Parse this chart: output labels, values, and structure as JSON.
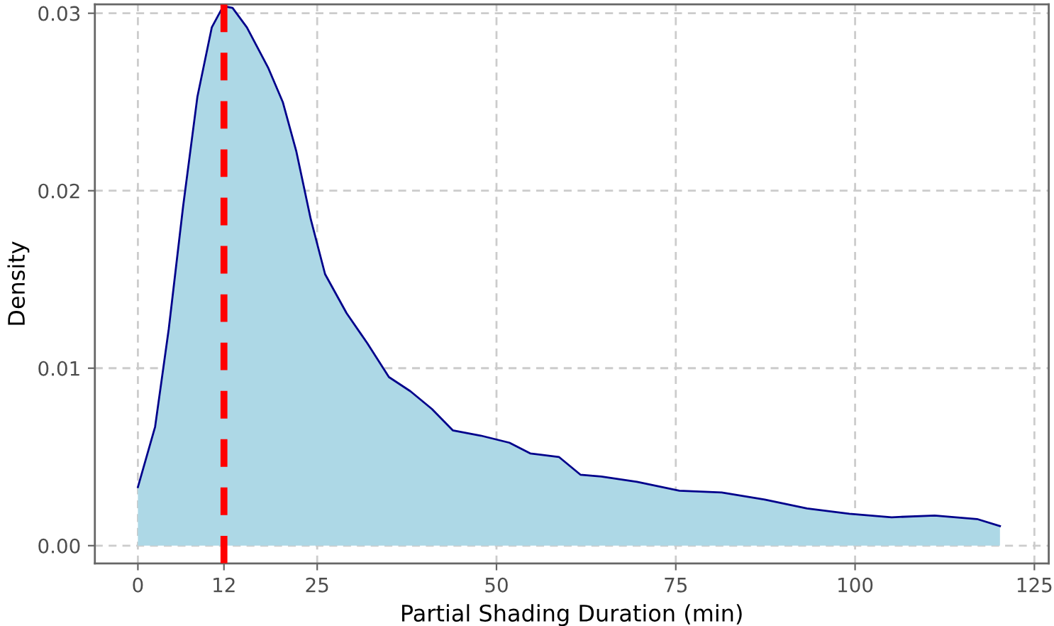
{
  "chart_data": {
    "type": "area",
    "xlabel": "Partial Shading Duration (min)",
    "ylabel": "Density",
    "series": [
      {
        "color": "#add8e6",
        "x": [
          0,
          2.4,
          4.3,
          6.3,
          8.3,
          10.3,
          11.9,
          13.2,
          15.2,
          18.2,
          20.2,
          22.1,
          24.1,
          26.1,
          29.1,
          32,
          35,
          38,
          41,
          43.9,
          47.8,
          51.8,
          54.7,
          58.7,
          61.7,
          64.6,
          69.6,
          75.5,
          81.4,
          87.4,
          93.3,
          99.2,
          105.1,
          111.1,
          117,
          120.2
        ],
        "values": [
          0.0033,
          0.0067,
          0.0122,
          0.0191,
          0.0253,
          0.0292,
          0.0304,
          0.0303,
          0.0292,
          0.0269,
          0.025,
          0.0222,
          0.0184,
          0.0153,
          0.0131,
          0.0114,
          0.0095,
          0.0087,
          0.0077,
          0.0065,
          0.0062,
          0.0058,
          0.0052,
          0.005,
          0.004,
          0.0039,
          0.0036,
          0.0031,
          0.003,
          0.0026,
          0.0021,
          0.0018,
          0.0016,
          0.0017,
          0.0015,
          0.0011
        ]
      }
    ],
    "xlim": [
      -6,
      127
    ],
    "ylim": [
      -0.001,
      0.0305
    ],
    "xticks": [
      0,
      12,
      25,
      50,
      75,
      100,
      125
    ],
    "yticks": [
      {
        "value": 0,
        "label": "0.00"
      },
      {
        "value": 0.01,
        "label": "0.01"
      },
      {
        "value": 0.02,
        "label": "0.02"
      },
      {
        "value": 0.03,
        "label": "0.03"
      }
    ],
    "ref_lines": [
      {
        "axis": "x",
        "value": 12,
        "color": "#ff0000",
        "line_style": "dashed"
      }
    ],
    "grid": true,
    "legend": false
  }
}
